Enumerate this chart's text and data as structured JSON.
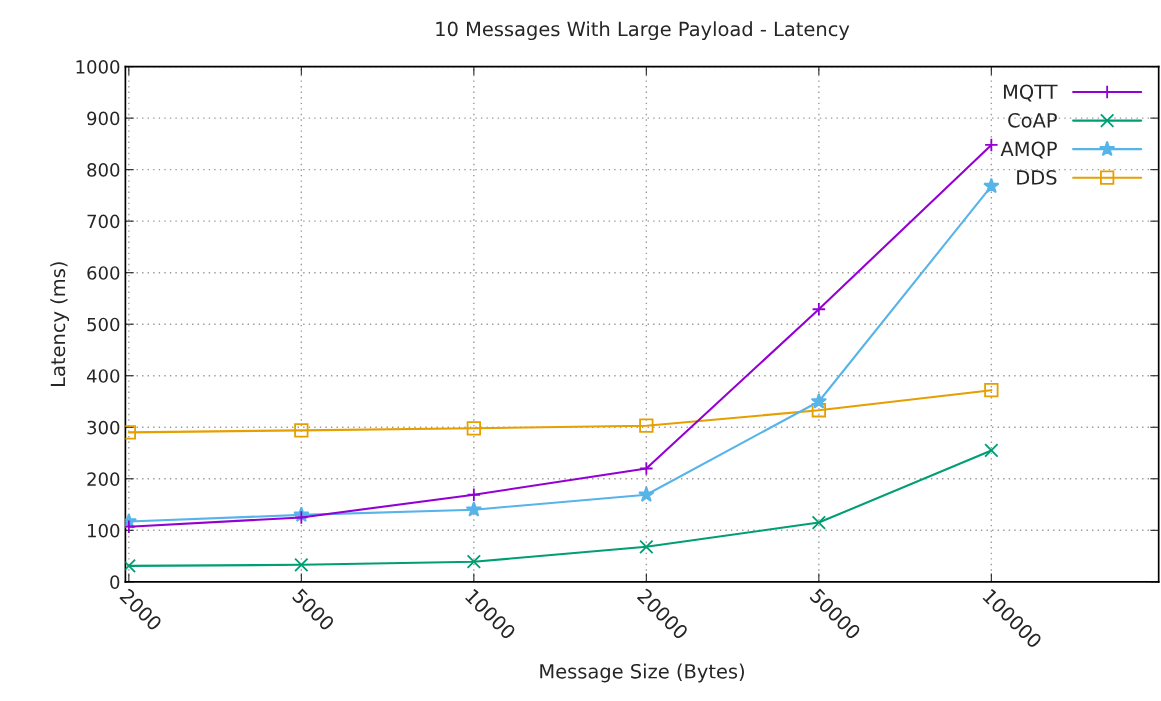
{
  "chart_data": {
    "type": "line",
    "title": "10 Messages With Large Payload - Latency",
    "xlabel": "Message Size (Bytes)",
    "ylabel": "Latency (ms)",
    "categories": [
      "2000",
      "5000",
      "10000",
      "20000",
      "50000",
      "100000"
    ],
    "series": [
      {
        "name": "MQTT",
        "color": "#9400d3",
        "marker": "cross",
        "values": [
          107,
          125,
          169,
          220,
          529,
          848
        ]
      },
      {
        "name": "CoAP",
        "color": "#009e73",
        "marker": "x",
        "values": [
          31,
          33,
          39,
          68,
          115,
          255
        ]
      },
      {
        "name": "AMQP",
        "color": "#56b4e9",
        "marker": "star",
        "values": [
          117,
          130,
          140,
          169,
          350,
          768
        ]
      },
      {
        "name": "DDS",
        "color": "#e69f00",
        "marker": "square",
        "values": [
          290,
          294,
          298,
          303,
          333,
          372
        ]
      }
    ],
    "ylim": [
      0,
      1000
    ],
    "yticks": [
      0,
      100,
      200,
      300,
      400,
      500,
      600,
      700,
      800,
      900,
      1000
    ],
    "grid": true,
    "legend": "top right",
    "line_style": "solid"
  }
}
